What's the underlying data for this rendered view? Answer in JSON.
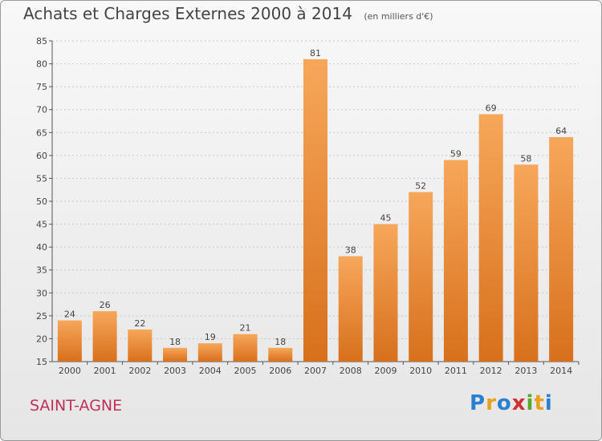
{
  "header": {
    "title": "Achats et Charges Externes 2000 à 2014",
    "subtitle": "(en milliers d'€)"
  },
  "place_name": "SAINT-AGNE",
  "brand": {
    "letters": [
      "P",
      "r",
      "o",
      "x",
      "i",
      "t",
      "i"
    ],
    "colors": [
      "#2a7fd0",
      "#e8a020",
      "#2a7fd0",
      "#d03030",
      "#58a830",
      "#e8a020",
      "#2a7fd0"
    ]
  },
  "chart_data": {
    "type": "bar",
    "title": "Achats et Charges Externes 2000 à 2014",
    "subtitle": "(en milliers d'€)",
    "categories": [
      "2000",
      "2001",
      "2002",
      "2003",
      "2004",
      "2005",
      "2006",
      "2007",
      "2008",
      "2009",
      "2010",
      "2011",
      "2012",
      "2013",
      "2014"
    ],
    "values": [
      24,
      26,
      22,
      18,
      19,
      21,
      18,
      81,
      38,
      45,
      52,
      59,
      69,
      58,
      64
    ],
    "ylim": [
      15,
      85
    ],
    "yticks": [
      15,
      20,
      25,
      30,
      35,
      40,
      45,
      50,
      55,
      60,
      65,
      70,
      75,
      80,
      85
    ],
    "grid": true,
    "colors": {
      "bar_light": "#f7a75a",
      "bar_dark": "#d7701c",
      "grid": "#c8c8c8"
    }
  }
}
